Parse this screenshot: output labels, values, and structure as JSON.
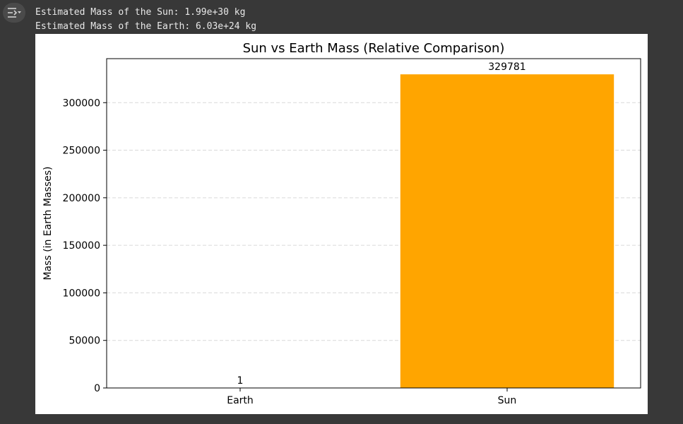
{
  "output": {
    "toggle_icon": "output-expand-icon",
    "lines": [
      "Estimated Mass of the Sun: 1.99e+30 kg",
      "Estimated Mass of the Earth: 6.03e+24 kg"
    ]
  },
  "chart_data": {
    "type": "bar",
    "title": "Sun vs Earth Mass (Relative Comparison)",
    "xlabel": "",
    "ylabel": "Mass (in Earth Masses)",
    "categories": [
      "Earth",
      "Sun"
    ],
    "values": [
      1,
      329781
    ],
    "value_labels": [
      "1",
      "329781"
    ],
    "colors": [
      "#1f77b4",
      "#ffa500"
    ],
    "ylim": [
      0,
      346270
    ],
    "yticks": [
      0,
      50000,
      100000,
      150000,
      200000,
      250000,
      300000
    ],
    "ytick_labels": [
      "0",
      "50000",
      "100000",
      "150000",
      "200000",
      "250000",
      "300000"
    ],
    "grid": "y-dashed"
  }
}
